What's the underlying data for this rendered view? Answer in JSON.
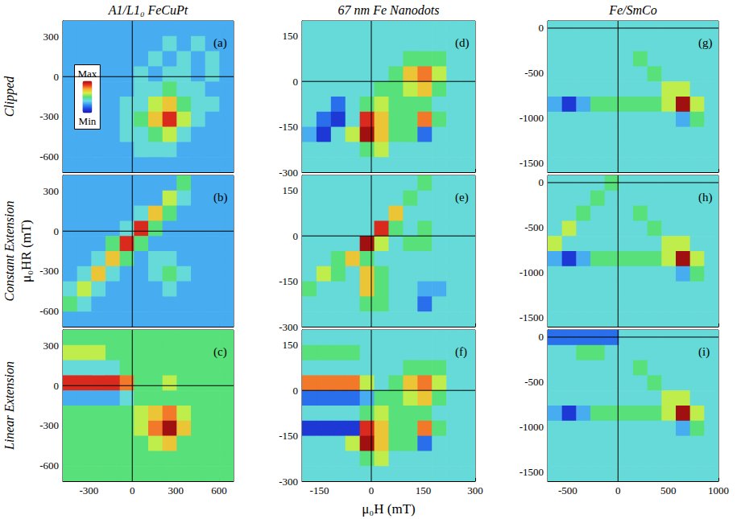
{
  "column_titles": [
    "A1/L1₀ FeCuPt",
    "67 nm Fe Nanodots",
    "Fe/SmCo"
  ],
  "row_titles": [
    "Clipped",
    "Constant Extension",
    "Linear Extension"
  ],
  "x_label": "μ₀H (mT)",
  "y_label": "μ₀HR (mT)",
  "colorbar_range": [
    0,
    10
  ],
  "colorbar_ticks": [
    {
      "value": 0,
      "label": "Min"
    },
    {
      "value": 10,
      "label": "Max"
    }
  ],
  "chart_data": [
    {
      "type": "heatmap",
      "title": "(a)",
      "tick_labels": "y",
      "xlim": [
        -480,
        700
      ],
      "ylim": [
        -720,
        420
      ],
      "xticks": [
        -300,
        0,
        300,
        600
      ],
      "yticks": [
        -600,
        -300,
        0,
        300
      ],
      "cells": [
        [
          3,
          3,
          3,
          3,
          3,
          3,
          3,
          3,
          3,
          3,
          3,
          3
        ],
        [
          3,
          3,
          3,
          3,
          3,
          3,
          3,
          4,
          3,
          4,
          3,
          3
        ],
        [
          3,
          3,
          3,
          3,
          3,
          3,
          4,
          3,
          4,
          3,
          4,
          3
        ],
        [
          3,
          3,
          3,
          3,
          3,
          4,
          3,
          4,
          4,
          3,
          4,
          3
        ],
        [
          3,
          3,
          3,
          3,
          3,
          4,
          4,
          5,
          4,
          4,
          3,
          3
        ],
        [
          3,
          3,
          3,
          3,
          4,
          4,
          6,
          7,
          5,
          4,
          4,
          3
        ],
        [
          3,
          3,
          3,
          3,
          4,
          5,
          7,
          9,
          6,
          4,
          3,
          3
        ],
        [
          3,
          3,
          3,
          3,
          4,
          4,
          5,
          6,
          4,
          3,
          3,
          3
        ],
        [
          3,
          3,
          3,
          3,
          3,
          4,
          4,
          4,
          3,
          3,
          3,
          3
        ],
        [
          3,
          3,
          3,
          3,
          3,
          3,
          3,
          3,
          3,
          3,
          3,
          3
        ]
      ]
    },
    {
      "type": "heatmap",
      "title": "(b)",
      "tick_labels": "y",
      "xlim": [
        -480,
        700
      ],
      "ylim": [
        -720,
        420
      ],
      "xticks": [
        -300,
        0,
        300,
        600
      ],
      "yticks": [
        -600,
        -300,
        0,
        300
      ],
      "cells": [
        [
          3,
          3,
          3,
          3,
          3,
          3,
          3,
          3,
          5,
          3,
          3,
          3
        ],
        [
          3,
          3,
          3,
          3,
          3,
          3,
          3,
          6,
          4,
          3,
          3,
          3
        ],
        [
          3,
          3,
          3,
          3,
          3,
          4,
          7,
          5,
          3,
          3,
          3,
          3
        ],
        [
          3,
          3,
          3,
          3,
          4,
          9,
          5,
          3,
          3,
          3,
          3,
          3
        ],
        [
          3,
          3,
          3,
          5,
          9,
          5,
          3,
          3,
          3,
          3,
          3,
          3
        ],
        [
          3,
          3,
          4,
          7,
          5,
          3,
          4,
          4,
          3,
          3,
          3,
          3
        ],
        [
          3,
          4,
          7,
          4,
          3,
          3,
          4,
          5,
          4,
          3,
          3,
          3
        ],
        [
          4,
          6,
          4,
          3,
          3,
          3,
          3,
          4,
          3,
          3,
          3,
          3
        ],
        [
          5,
          4,
          3,
          3,
          3,
          3,
          3,
          3,
          3,
          3,
          3,
          3
        ],
        [
          3,
          3,
          3,
          3,
          3,
          3,
          3,
          3,
          3,
          3,
          3,
          3
        ]
      ]
    },
    {
      "type": "heatmap",
      "title": "(c)",
      "xlim": [
        -480,
        700
      ],
      "ylim": [
        -720,
        420
      ],
      "xticks": [
        -300,
        0,
        300,
        600
      ],
      "yticks": [
        -600,
        -300,
        0,
        300
      ],
      "cells": [
        [
          5,
          5,
          5,
          5,
          5,
          5,
          5,
          5,
          5,
          5,
          5,
          5
        ],
        [
          6,
          6,
          6,
          5,
          5,
          5,
          5,
          5,
          5,
          5,
          5,
          5
        ],
        [
          4,
          4,
          4,
          4,
          5,
          5,
          5,
          5,
          5,
          5,
          5,
          5
        ],
        [
          9,
          9,
          9,
          9,
          8,
          5,
          5,
          6,
          5,
          5,
          5,
          5
        ],
        [
          3,
          3,
          3,
          3,
          4,
          5,
          5,
          5,
          5,
          5,
          5,
          5
        ],
        [
          5,
          5,
          5,
          5,
          5,
          6,
          7,
          8,
          6,
          5,
          5,
          5
        ],
        [
          5,
          5,
          5,
          5,
          5,
          6,
          8,
          10,
          7,
          5,
          5,
          5
        ],
        [
          5,
          5,
          5,
          5,
          5,
          5,
          6,
          7,
          5,
          5,
          5,
          5
        ],
        [
          5,
          5,
          5,
          5,
          5,
          5,
          5,
          5,
          5,
          5,
          5,
          5
        ],
        [
          5,
          5,
          5,
          5,
          5,
          5,
          5,
          5,
          5,
          5,
          5,
          5
        ]
      ]
    },
    {
      "type": "heatmap",
      "title": "(d)",
      "tick_labels": "y",
      "xlim": [
        -200,
        300
      ],
      "ylim": [
        -300,
        200
      ],
      "xticks": [
        -150,
        0,
        150,
        300
      ],
      "yticks": [
        -300,
        -150,
        0,
        150
      ],
      "cells": [
        [
          4,
          4,
          4,
          4,
          4,
          4,
          4,
          4,
          4,
          4,
          4,
          4
        ],
        [
          4,
          4,
          4,
          4,
          4,
          4,
          4,
          4,
          4,
          4,
          4,
          4
        ],
        [
          4,
          4,
          4,
          4,
          4,
          4,
          4,
          5,
          5,
          5,
          4,
          4
        ],
        [
          4,
          4,
          4,
          4,
          4,
          4,
          5,
          7,
          8,
          6,
          4,
          4
        ],
        [
          4,
          4,
          4,
          4,
          4,
          5,
          5,
          6,
          7,
          5,
          4,
          4
        ],
        [
          4,
          4,
          2,
          4,
          5,
          6,
          5,
          5,
          5,
          4,
          4,
          4
        ],
        [
          4,
          2,
          1,
          4,
          9,
          7,
          5,
          5,
          8,
          5,
          4,
          4
        ],
        [
          3,
          1,
          4,
          6,
          10,
          7,
          5,
          5,
          2,
          4,
          4,
          4
        ],
        [
          4,
          4,
          4,
          4,
          5,
          6,
          4,
          4,
          4,
          4,
          4,
          4
        ],
        [
          4,
          4,
          4,
          4,
          4,
          4,
          4,
          4,
          4,
          4,
          4,
          4
        ]
      ]
    },
    {
      "type": "heatmap",
      "title": "(e)",
      "tick_labels": "y",
      "xlim": [
        -200,
        300
      ],
      "ylim": [
        -300,
        200
      ],
      "xticks": [
        -150,
        0,
        150,
        300
      ],
      "yticks": [
        -300,
        -150,
        0,
        150
      ],
      "cells": [
        [
          4,
          4,
          4,
          4,
          4,
          4,
          4,
          4,
          5,
          4,
          4,
          4
        ],
        [
          4,
          4,
          4,
          4,
          4,
          4,
          4,
          5,
          4,
          4,
          4,
          4
        ],
        [
          4,
          4,
          4,
          4,
          4,
          4,
          7,
          4,
          4,
          4,
          4,
          4
        ],
        [
          4,
          4,
          4,
          4,
          4,
          9,
          5,
          4,
          5,
          4,
          4,
          4
        ],
        [
          4,
          4,
          4,
          4,
          10,
          6,
          4,
          5,
          5,
          4,
          4,
          4
        ],
        [
          4,
          4,
          5,
          7,
          5,
          4,
          4,
          4,
          4,
          4,
          4,
          4
        ],
        [
          4,
          6,
          5,
          4,
          7,
          5,
          4,
          4,
          4,
          4,
          4,
          4
        ],
        [
          5,
          4,
          4,
          4,
          7,
          5,
          4,
          4,
          3,
          3,
          4,
          4
        ],
        [
          4,
          4,
          4,
          4,
          5,
          5,
          4,
          4,
          2,
          4,
          4,
          4
        ],
        [
          4,
          4,
          4,
          4,
          4,
          4,
          4,
          4,
          4,
          4,
          4,
          4
        ]
      ]
    },
    {
      "type": "heatmap",
      "title": "(f)",
      "xlim": [
        -200,
        300
      ],
      "ylim": [
        -300,
        200
      ],
      "xticks": [
        -150,
        0,
        150,
        300
      ],
      "yticks": [
        -300,
        -150,
        0,
        150
      ],
      "cells": [
        [
          4,
          4,
          4,
          4,
          4,
          4,
          4,
          4,
          4,
          4,
          4,
          4
        ],
        [
          5,
          5,
          5,
          5,
          4,
          4,
          4,
          4,
          4,
          4,
          4,
          4
        ],
        [
          4,
          4,
          4,
          4,
          4,
          4,
          4,
          5,
          5,
          5,
          4,
          4
        ],
        [
          8,
          8,
          8,
          8,
          6,
          4,
          5,
          7,
          8,
          6,
          4,
          4
        ],
        [
          2,
          2,
          2,
          2,
          3,
          5,
          5,
          6,
          7,
          5,
          4,
          4
        ],
        [
          4,
          4,
          4,
          4,
          5,
          6,
          5,
          5,
          5,
          4,
          4,
          4
        ],
        [
          1,
          1,
          1,
          1,
          9,
          7,
          5,
          5,
          8,
          5,
          4,
          4
        ],
        [
          4,
          4,
          4,
          6,
          10,
          7,
          5,
          5,
          2,
          4,
          4,
          4
        ],
        [
          4,
          4,
          4,
          4,
          5,
          6,
          4,
          4,
          4,
          4,
          4,
          4
        ],
        [
          4,
          4,
          4,
          4,
          4,
          4,
          4,
          4,
          4,
          4,
          4,
          4
        ]
      ]
    },
    {
      "type": "heatmap",
      "title": "(g)",
      "tick_labels": "y",
      "xlim": [
        -700,
        1000
      ],
      "ylim": [
        -1600,
        80
      ],
      "xticks": [
        -500,
        0,
        500,
        1000
      ],
      "yticks": [
        -1500,
        -1000,
        -500,
        0
      ],
      "cells": [
        [
          4,
          4,
          4,
          4,
          4,
          4,
          4,
          4,
          4,
          4,
          4,
          4
        ],
        [
          4,
          4,
          4,
          4,
          4,
          4,
          4,
          4,
          4,
          4,
          4,
          4
        ],
        [
          4,
          4,
          4,
          4,
          4,
          4,
          5,
          4,
          4,
          4,
          4,
          4
        ],
        [
          4,
          4,
          4,
          4,
          4,
          4,
          4,
          5,
          4,
          4,
          4,
          4
        ],
        [
          4,
          4,
          4,
          4,
          4,
          4,
          4,
          4,
          6,
          6,
          4,
          4
        ],
        [
          3,
          1,
          3,
          5,
          5,
          5,
          5,
          5,
          6,
          10,
          6,
          4
        ],
        [
          4,
          4,
          4,
          4,
          4,
          4,
          4,
          4,
          4,
          3,
          5,
          4
        ],
        [
          4,
          4,
          4,
          4,
          4,
          4,
          4,
          4,
          4,
          4,
          4,
          4
        ],
        [
          4,
          4,
          4,
          4,
          4,
          4,
          4,
          4,
          4,
          4,
          4,
          4
        ],
        [
          4,
          4,
          4,
          4,
          4,
          4,
          4,
          4,
          4,
          4,
          4,
          4
        ]
      ]
    },
    {
      "type": "heatmap",
      "title": "(h)",
      "tick_labels": "y",
      "xlim": [
        -700,
        1000
      ],
      "ylim": [
        -1600,
        80
      ],
      "xticks": [
        -500,
        0,
        500,
        1000
      ],
      "yticks": [
        -1500,
        -1000,
        -500,
        0
      ],
      "cells": [
        [
          4,
          4,
          4,
          4,
          5,
          4,
          4,
          4,
          4,
          4,
          4,
          4
        ],
        [
          4,
          4,
          4,
          5,
          4,
          4,
          4,
          4,
          4,
          4,
          4,
          4
        ],
        [
          4,
          4,
          5,
          4,
          4,
          4,
          5,
          4,
          4,
          4,
          4,
          4
        ],
        [
          4,
          6,
          4,
          4,
          4,
          4,
          4,
          5,
          4,
          4,
          4,
          4
        ],
        [
          6,
          4,
          4,
          4,
          4,
          4,
          4,
          4,
          6,
          6,
          4,
          4
        ],
        [
          3,
          1,
          3,
          5,
          5,
          5,
          5,
          5,
          6,
          10,
          6,
          4
        ],
        [
          4,
          4,
          4,
          4,
          4,
          4,
          4,
          4,
          4,
          3,
          5,
          4
        ],
        [
          4,
          4,
          4,
          4,
          4,
          4,
          4,
          4,
          4,
          4,
          4,
          4
        ],
        [
          4,
          4,
          4,
          4,
          4,
          4,
          4,
          4,
          4,
          4,
          4,
          4
        ],
        [
          4,
          4,
          4,
          4,
          4,
          4,
          4,
          4,
          4,
          4,
          4,
          4
        ]
      ]
    },
    {
      "type": "heatmap",
      "title": "(i)",
      "xlim": [
        -700,
        1000
      ],
      "ylim": [
        -1600,
        80
      ],
      "xticks": [
        -500,
        0,
        500,
        1000
      ],
      "yticks": [
        -1500,
        -1000,
        -500,
        0
      ],
      "cells": [
        [
          2,
          2,
          2,
          2,
          2,
          4,
          4,
          4,
          4,
          4,
          4,
          4
        ],
        [
          4,
          4,
          5,
          5,
          4,
          4,
          4,
          4,
          4,
          4,
          4,
          4
        ],
        [
          4,
          4,
          4,
          4,
          4,
          4,
          5,
          4,
          4,
          4,
          4,
          4
        ],
        [
          4,
          4,
          4,
          4,
          4,
          4,
          4,
          5,
          4,
          4,
          4,
          4
        ],
        [
          4,
          4,
          4,
          4,
          4,
          4,
          4,
          4,
          6,
          6,
          4,
          4
        ],
        [
          3,
          1,
          3,
          5,
          5,
          5,
          5,
          5,
          6,
          10,
          6,
          4
        ],
        [
          4,
          4,
          4,
          4,
          4,
          4,
          4,
          4,
          4,
          3,
          5,
          4
        ],
        [
          4,
          4,
          4,
          4,
          4,
          4,
          4,
          4,
          4,
          4,
          4,
          4
        ],
        [
          4,
          4,
          4,
          4,
          4,
          4,
          4,
          4,
          4,
          4,
          4,
          4
        ],
        [
          4,
          4,
          4,
          4,
          4,
          4,
          4,
          4,
          4,
          4,
          4,
          4
        ]
      ]
    }
  ]
}
